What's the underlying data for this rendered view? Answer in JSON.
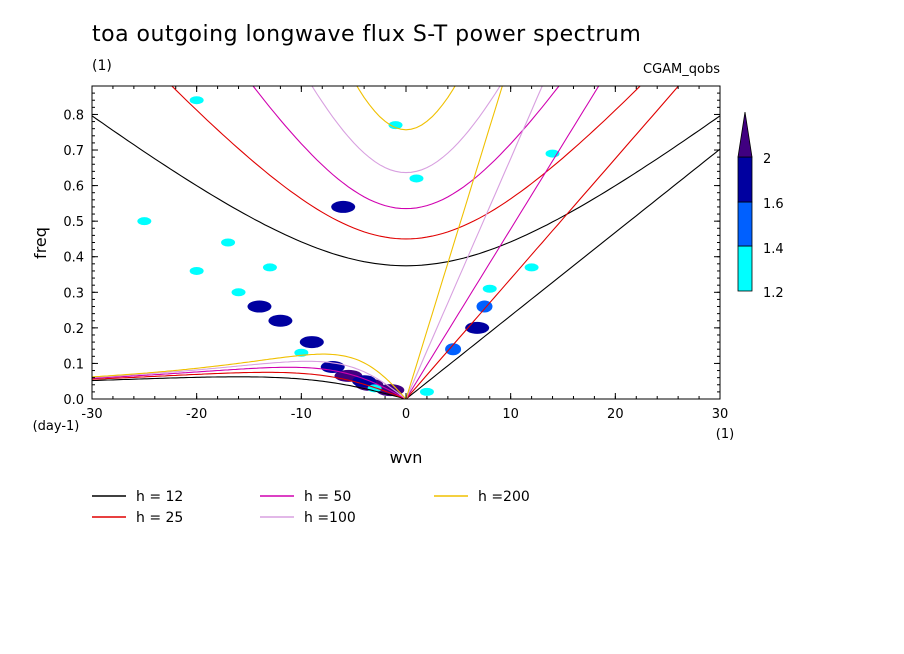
{
  "title": "toa outgoing longwave flux S-T power spectrum",
  "subtitle": "(1)",
  "tag": "CGAM_qobs",
  "chart_data": {
    "type": "heatmap",
    "xlabel": "wvn",
    "ylabel": "freq",
    "x_unit": "(1)",
    "y_unit": "(day-1)",
    "xlim": [
      -30,
      30
    ],
    "ylim": [
      0,
      0.88
    ],
    "x_ticks": [
      -30,
      -20,
      -10,
      0,
      10,
      20,
      30
    ],
    "x_tick_labels": [
      "-30",
      "-20",
      "-10",
      "0",
      "10",
      "20",
      "30"
    ],
    "y_ticks": [
      0,
      0.1,
      0.2,
      0.3,
      0.4,
      0.5,
      0.6,
      0.7,
      0.8
    ],
    "y_tick_labels": [
      "0.0",
      "0.1",
      "0.2",
      "0.3",
      "0.4",
      "0.5",
      "0.6",
      "0.7",
      "0.8"
    ],
    "colorbar": {
      "levels": [
        1.2,
        1.4,
        1.6,
        2
      ],
      "labels": [
        "1.2",
        "1.4",
        "1.6",
        "2"
      ],
      "colors": [
        "#00ffff",
        "#0060ff",
        "#0000a0",
        "#400080"
      ]
    },
    "dispersion_series": [
      {
        "name": "h = 12",
        "h": 12,
        "color": "#000000"
      },
      {
        "name": "h = 25",
        "h": 25,
        "color": "#e00000"
      },
      {
        "name": "h = 50",
        "h": 50,
        "color": "#d000b0"
      },
      {
        "name": "h =100",
        "h": 100,
        "color": "#d8a0e0"
      },
      {
        "name": "h =200",
        "h": 200,
        "color": "#f0c000"
      }
    ],
    "power_regions": [
      {
        "x": -5.5,
        "y": 0.065,
        "level": 2
      },
      {
        "x": -3.5,
        "y": 0.04,
        "level": 2
      },
      {
        "x": -1.5,
        "y": 0.025,
        "level": 2
      },
      {
        "x": -9,
        "y": 0.16,
        "level": 1.6
      },
      {
        "x": -12,
        "y": 0.22,
        "level": 1.6
      },
      {
        "x": -14,
        "y": 0.26,
        "level": 1.6
      },
      {
        "x": -7,
        "y": 0.09,
        "level": 1.6
      },
      {
        "x": -4,
        "y": 0.05,
        "level": 1.6
      },
      {
        "x": 6.8,
        "y": 0.2,
        "level": 1.6
      },
      {
        "x": 7.5,
        "y": 0.26,
        "level": 1.4
      },
      {
        "x": 4.5,
        "y": 0.14,
        "level": 1.4
      },
      {
        "x": -6,
        "y": 0.54,
        "level": 1.6
      },
      {
        "x": -16,
        "y": 0.3,
        "level": 1.2
      },
      {
        "x": -20,
        "y": 0.36,
        "level": 1.2
      },
      {
        "x": -10,
        "y": 0.13,
        "level": 1.2
      },
      {
        "x": -3,
        "y": 0.03,
        "level": 1.2
      },
      {
        "x": 2,
        "y": 0.02,
        "level": 1.2
      },
      {
        "x": 12,
        "y": 0.37,
        "level": 1.2
      },
      {
        "x": 8,
        "y": 0.31,
        "level": 1.2
      },
      {
        "x": -13,
        "y": 0.37,
        "level": 1.2
      },
      {
        "x": -17,
        "y": 0.44,
        "level": 1.2
      },
      {
        "x": 1,
        "y": 0.62,
        "level": 1.2
      },
      {
        "x": -25,
        "y": 0.5,
        "level": 1.2
      },
      {
        "x": 14,
        "y": 0.69,
        "level": 1.2
      },
      {
        "x": -1,
        "y": 0.77,
        "level": 1.2
      },
      {
        "x": -20,
        "y": 0.84,
        "level": 1.2
      }
    ]
  }
}
